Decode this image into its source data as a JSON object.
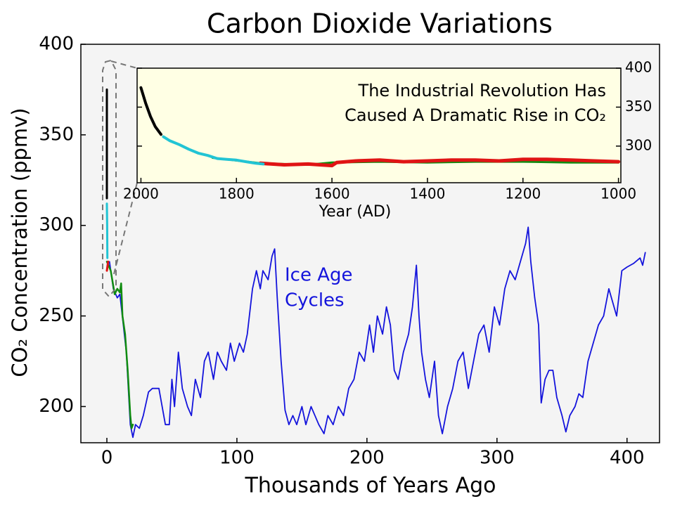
{
  "chart_data": [
    {
      "type": "line",
      "title": "Carbon Dioxide Variations",
      "xlabel": "Thousands of Years Ago",
      "ylabel": "CO₂ Concentration (ppmv)",
      "xlim": [
        -20,
        425
      ],
      "ylim": [
        180,
        400
      ],
      "xticks": [
        0,
        100,
        200,
        300,
        400
      ],
      "yticks": [
        200,
        250,
        300,
        350,
        400
      ],
      "annotation": [
        "Ice Age",
        "Cycles"
      ],
      "series": [
        {
          "color": "#1414dc",
          "width": 1.8,
          "x": [
            2,
            5,
            8,
            10,
            15,
            18,
            20,
            22,
            25,
            28,
            32,
            35,
            40,
            45,
            48,
            50,
            52,
            55,
            58,
            62,
            65,
            68,
            72,
            75,
            78,
            82,
            85,
            88,
            92,
            95,
            98,
            102,
            105,
            108,
            112,
            115,
            118,
            120,
            124,
            127,
            129,
            131,
            134,
            137,
            140,
            143,
            146,
            150,
            153,
            157,
            160,
            163,
            167,
            170,
            174,
            178,
            182,
            186,
            190,
            194,
            198,
            202,
            205,
            208,
            212,
            215,
            218,
            221,
            224,
            228,
            232,
            235,
            238,
            240,
            242,
            245,
            248,
            252,
            255,
            258,
            262,
            266,
            270,
            274,
            278,
            282,
            286,
            290,
            294,
            298,
            302,
            306,
            310,
            314,
            318,
            322,
            324,
            326,
            329,
            332,
            334,
            337,
            340,
            343,
            346,
            350,
            353,
            356,
            360,
            363,
            366,
            370,
            374,
            378,
            382,
            386,
            390,
            392,
            396,
            400,
            405,
            410,
            412,
            414
          ],
          "values": [
            280,
            265,
            260,
            262,
            230,
            190,
            183,
            190,
            188,
            195,
            208,
            210,
            210,
            190,
            190,
            215,
            200,
            230,
            210,
            200,
            195,
            215,
            205,
            225,
            230,
            215,
            230,
            225,
            220,
            235,
            225,
            235,
            230,
            240,
            265,
            275,
            265,
            275,
            270,
            283,
            287,
            260,
            225,
            198,
            190,
            195,
            190,
            200,
            190,
            200,
            195,
            190,
            185,
            195,
            190,
            200,
            195,
            210,
            215,
            230,
            225,
            245,
            230,
            250,
            240,
            255,
            245,
            220,
            215,
            230,
            240,
            255,
            278,
            250,
            230,
            215,
            205,
            225,
            195,
            185,
            200,
            210,
            225,
            230,
            210,
            225,
            240,
            245,
            230,
            255,
            245,
            265,
            275,
            270,
            280,
            290,
            299,
            280,
            260,
            245,
            202,
            215,
            220,
            220,
            205,
            195,
            186,
            195,
            200,
            207,
            205,
            225,
            235,
            245,
            250,
            265,
            255,
            250,
            275,
            277,
            279,
            282,
            278,
            285
          ]
        },
        {
          "color": "#108c10",
          "width": 2.5,
          "x": [
            0,
            3,
            6,
            8,
            10,
            11,
            12,
            14,
            16,
            18,
            19,
            20
          ],
          "values": [
            280,
            275,
            262,
            265,
            263,
            268,
            250,
            240,
            220,
            195,
            188,
            190
          ]
        },
        {
          "color": "#e01414",
          "width": 3,
          "x": [
            0,
            1
          ],
          "values": [
            275,
            280
          ]
        },
        {
          "color": "#22c4d4",
          "width": 3,
          "x": [
            0.4,
            0.2,
            0
          ],
          "values": [
            282,
            300,
            312
          ]
        },
        {
          "color": "#000000",
          "width": 3,
          "x": [
            0,
            0
          ],
          "values": [
            315,
            375
          ]
        }
      ]
    },
    {
      "type": "line",
      "xlabel": "Year (AD)",
      "yaxis_side": "right",
      "xlim": [
        2008,
        995
      ],
      "ylim": [
        253,
        400
      ],
      "xticks": [
        2000,
        1800,
        1600,
        1400,
        1200,
        1000
      ],
      "yticks": [
        300,
        350,
        400
      ],
      "annotation": [
        "The Industrial Revolution Has",
        "Caused A Dramatic Rise in CO₂"
      ],
      "series": [
        {
          "color": "#108c10",
          "width": 3,
          "x": [
            1850,
            1750,
            1650,
            1600,
            1500,
            1400,
            1300,
            1200,
            1100,
            1000
          ],
          "values": [
            285,
            278,
            276,
            279,
            280,
            279,
            280,
            280,
            279,
            279
          ]
        },
        {
          "color": "#e01414",
          "width": 5,
          "x": [
            1750,
            1700,
            1650,
            1600,
            1590,
            1550,
            1500,
            1450,
            1400,
            1350,
            1300,
            1250,
            1200,
            1150,
            1100,
            1050,
            1000
          ],
          "values": [
            278,
            276,
            277,
            275,
            279,
            281,
            282,
            280,
            281,
            282,
            282,
            281,
            283,
            283,
            282,
            281,
            280
          ]
        },
        {
          "color": "#22c4d4",
          "width": 4,
          "x": [
            1953,
            1940,
            1920,
            1900,
            1880,
            1860,
            1840,
            1820,
            1800,
            1780,
            1760,
            1744
          ],
          "values": [
            312,
            307,
            302,
            296,
            291,
            288,
            284,
            283,
            282,
            280,
            278,
            277
          ]
        },
        {
          "color": "#000000",
          "width": 4,
          "x": [
            2000,
            1990,
            1980,
            1970,
            1958
          ],
          "values": [
            375,
            355,
            338,
            325,
            315
          ]
        }
      ]
    }
  ]
}
